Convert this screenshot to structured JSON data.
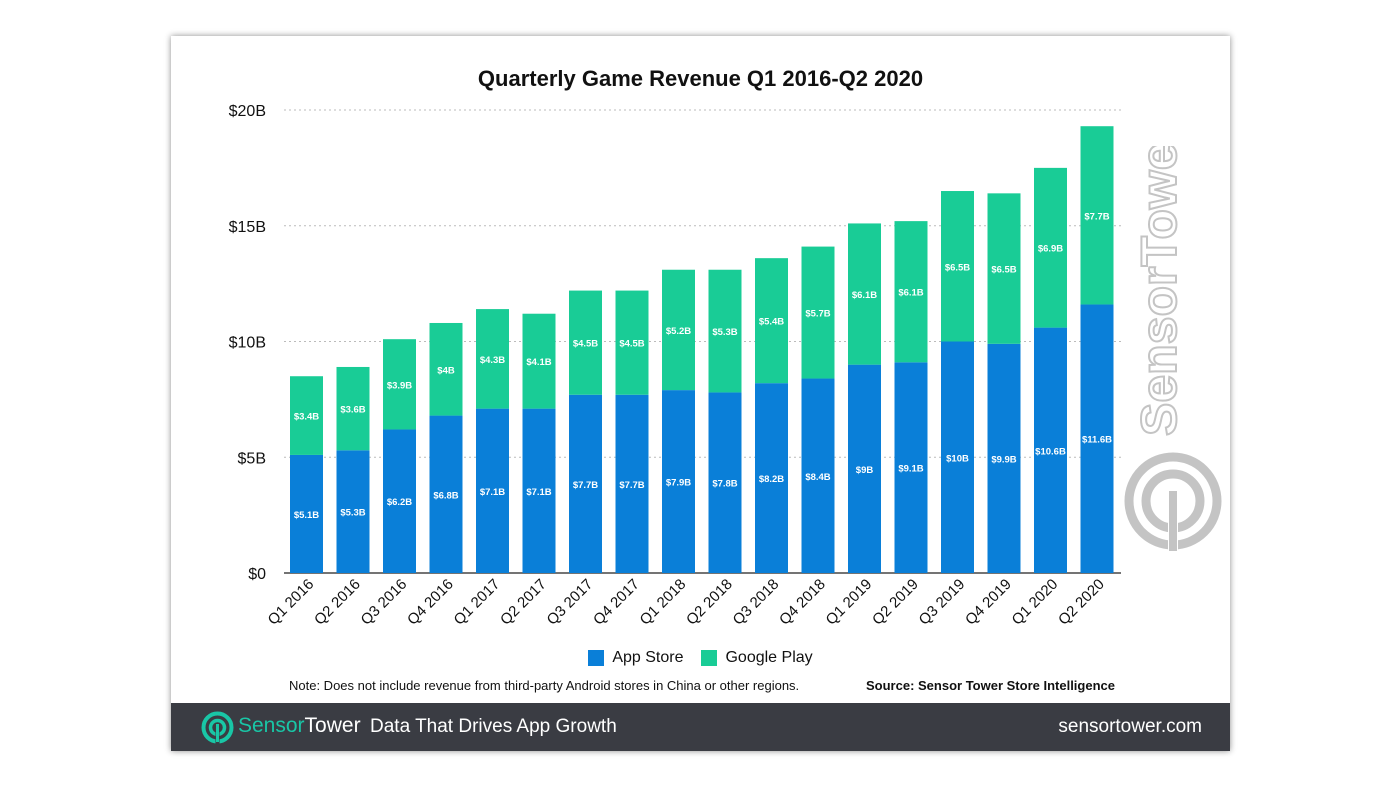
{
  "colors": {
    "app_store": "#0a7fd8",
    "google_play": "#19cc96",
    "footer_bg": "#3a3c43",
    "brand_accent": "#19c6a6"
  },
  "chart_data": {
    "type": "bar",
    "stacked": true,
    "title": "Quarterly Game Revenue Q1 2016-Q2 2020",
    "categories": [
      "Q1 2016",
      "Q2 2016",
      "Q3 2016",
      "Q4 2016",
      "Q1 2017",
      "Q2 2017",
      "Q3 2017",
      "Q4 2017",
      "Q1 2018",
      "Q2 2018",
      "Q3 2018",
      "Q4 2018",
      "Q1 2019",
      "Q2 2019",
      "Q3 2019",
      "Q4 2019",
      "Q1 2020",
      "Q2 2020"
    ],
    "series": [
      {
        "name": "App Store",
        "values": [
          5.1,
          5.3,
          6.2,
          6.8,
          7.1,
          7.1,
          7.7,
          7.7,
          7.9,
          7.8,
          8.2,
          8.4,
          9,
          9.1,
          10,
          9.9,
          10.6,
          11.6
        ],
        "labels": [
          "$5.1B",
          "$5.3B",
          "$6.2B",
          "$6.8B",
          "$7.1B",
          "$7.1B",
          "$7.7B",
          "$7.7B",
          "$7.9B",
          "$7.8B",
          "$8.2B",
          "$8.4B",
          "$9B",
          "$9.1B",
          "$10B",
          "$9.9B",
          "$10.6B",
          "$11.6B"
        ]
      },
      {
        "name": "Google Play",
        "values": [
          3.4,
          3.6,
          3.9,
          4,
          4.3,
          4.1,
          4.5,
          4.5,
          5.2,
          5.3,
          5.4,
          5.7,
          6.1,
          6.1,
          6.5,
          6.5,
          6.9,
          7.7
        ],
        "labels": [
          "$3.4B",
          "$3.6B",
          "$3.9B",
          "$4B",
          "$4.3B",
          "$4.1B",
          "$4.5B",
          "$4.5B",
          "$5.2B",
          "$5.3B",
          "$5.4B",
          "$5.7B",
          "$6.1B",
          "$6.1B",
          "$6.5B",
          "$6.5B",
          "$6.9B",
          "$7.7B"
        ]
      }
    ],
    "ylim": [
      0,
      20
    ],
    "yticks": [
      0,
      5,
      10,
      15,
      20
    ],
    "ytick_labels": [
      "$0",
      "$5B",
      "$10B",
      "$15B",
      "$20B"
    ],
    "grid": true,
    "legend": "bottom"
  },
  "note": "Note: Does not include revenue from third-party Android stores in China or other regions.",
  "source": "Source: Sensor Tower Store Intelligence",
  "footer": {
    "brand_part1": "Sensor",
    "brand_part2": "Tower",
    "tagline": "Data That Drives App Growth",
    "url": "sensortower.com"
  },
  "watermark_text": "SensorTower"
}
